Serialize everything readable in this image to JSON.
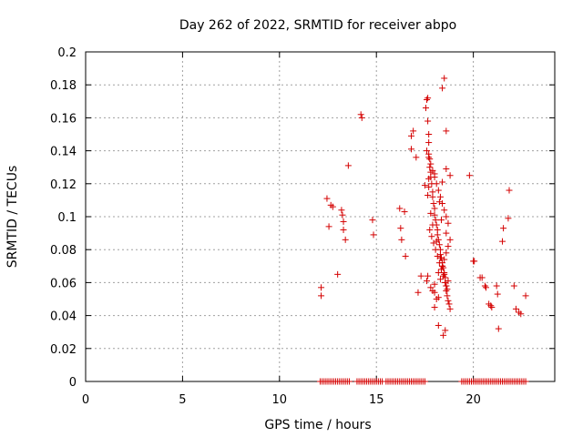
{
  "chart_data": {
    "type": "scatter",
    "title": "Day 262 of 2022, SRMTID for receiver abpo",
    "xlabel": "GPS time / hours",
    "ylabel": "SRMTID / TECUs",
    "xlim": [
      0,
      24.2
    ],
    "ylim": [
      0,
      0.2
    ],
    "xticks": [
      0,
      5,
      10,
      15,
      20
    ],
    "xtick_labels": [
      "0",
      "5",
      "10",
      "15",
      "20"
    ],
    "yticks": [
      0,
      0.02,
      0.04,
      0.06,
      0.08,
      0.1,
      0.12,
      0.14,
      0.16,
      0.18,
      0.2
    ],
    "ytick_labels": [
      "0",
      "0.02",
      "0.04",
      "0.06",
      "0.08",
      "0.1",
      "0.12",
      "0.14",
      "0.16",
      "0.18",
      "0.2"
    ],
    "grid": true,
    "marker": "+",
    "color": "#d40000",
    "series": [
      {
        "name": "abpo",
        "x": [
          12.15,
          12.15,
          12.45,
          12.55,
          12.65,
          12.75,
          13.0,
          13.2,
          13.25,
          13.3,
          13.3,
          13.4,
          13.55,
          14.2,
          14.25,
          14.8,
          14.85,
          16.2,
          16.25,
          16.3,
          16.45,
          16.5,
          16.8,
          16.8,
          16.9,
          17.05,
          17.15,
          17.3,
          17.5,
          17.55,
          17.6,
          17.65,
          17.65,
          17.7,
          17.7,
          17.7,
          17.75,
          17.75,
          17.8,
          17.8,
          17.85,
          17.9,
          17.9,
          17.95,
          18.0,
          18.0,
          18.05,
          18.1,
          18.15,
          18.15,
          18.2,
          18.25,
          18.3,
          18.3,
          18.35,
          18.4,
          18.45,
          18.5,
          18.55,
          18.55,
          18.6,
          18.6,
          18.65,
          18.7,
          18.75,
          18.8,
          17.6,
          17.7,
          17.8,
          17.9,
          18.0,
          18.1,
          18.2,
          18.3,
          18.4,
          18.5,
          18.6,
          18.7,
          17.75,
          17.85,
          17.95,
          18.05,
          18.15,
          18.25,
          18.35,
          18.45,
          18.55,
          18.65,
          17.65,
          18.0,
          18.3,
          18.6,
          18.2,
          18.4,
          18.5,
          18.6,
          18.7,
          18.8,
          17.6,
          17.8,
          18.0,
          18.2,
          18.4,
          18.6,
          17.9,
          18.1,
          18.3,
          18.5,
          18.7,
          17.7,
          18.0,
          18.4,
          18.6,
          18.8,
          18.5,
          18.4,
          18.6,
          18.55,
          18.45,
          18.2,
          18.0,
          17.9,
          17.8,
          18.1,
          17.7,
          17.65,
          18.25,
          18.35,
          19.8,
          20.0,
          20.05,
          20.35,
          20.45,
          20.6,
          20.65,
          20.8,
          20.9,
          20.95,
          21.2,
          21.25,
          21.3,
          21.5,
          21.55,
          21.8,
          21.85,
          22.1,
          22.2,
          22.35,
          22.45,
          22.7
        ],
        "y": [
          0.057,
          0.052,
          0.111,
          0.094,
          0.107,
          0.106,
          0.065,
          0.104,
          0.101,
          0.097,
          0.092,
          0.086,
          0.131,
          0.162,
          0.16,
          0.098,
          0.089,
          0.105,
          0.093,
          0.086,
          0.103,
          0.076,
          0.149,
          0.141,
          0.152,
          0.136,
          0.054,
          0.064,
          0.119,
          0.166,
          0.171,
          0.172,
          0.158,
          0.15,
          0.145,
          0.138,
          0.135,
          0.13,
          0.127,
          0.124,
          0.12,
          0.115,
          0.112,
          0.108,
          0.105,
          0.101,
          0.098,
          0.095,
          0.092,
          0.089,
          0.086,
          0.083,
          0.08,
          0.077,
          0.075,
          0.072,
          0.069,
          0.066,
          0.063,
          0.06,
          0.058,
          0.055,
          0.052,
          0.049,
          0.047,
          0.044,
          0.14,
          0.136,
          0.132,
          0.128,
          0.124,
          0.12,
          0.116,
          0.112,
          0.108,
          0.104,
          0.1,
          0.096,
          0.092,
          0.088,
          0.084,
          0.08,
          0.076,
          0.072,
          0.068,
          0.064,
          0.06,
          0.056,
          0.064,
          0.059,
          0.062,
          0.058,
          0.066,
          0.07,
          0.074,
          0.078,
          0.082,
          0.086,
          0.061,
          0.057,
          0.054,
          0.051,
          0.07,
          0.09,
          0.095,
          0.085,
          0.075,
          0.065,
          0.061,
          0.123,
          0.126,
          0.121,
          0.129,
          0.125,
          0.184,
          0.178,
          0.152,
          0.031,
          0.028,
          0.034,
          0.045,
          0.055,
          0.102,
          0.05,
          0.118,
          0.113,
          0.109,
          0.098,
          0.125,
          0.073,
          0.073,
          0.063,
          0.063,
          0.058,
          0.057,
          0.047,
          0.046,
          0.045,
          0.058,
          0.053,
          0.032,
          0.085,
          0.093,
          0.099,
          0.116,
          0.058,
          0.044,
          0.042,
          0.041,
          0.052
        ]
      },
      {
        "name": "zero",
        "x": [
          12.1,
          12.2,
          12.3,
          12.4,
          12.5,
          12.6,
          12.7,
          12.8,
          12.9,
          13.0,
          13.1,
          13.2,
          13.3,
          13.4,
          13.5,
          13.6,
          14.0,
          14.1,
          14.2,
          14.3,
          14.4,
          14.5,
          14.6,
          14.7,
          14.8,
          14.9,
          15.0,
          15.1,
          15.2,
          15.3,
          15.5,
          15.6,
          15.7,
          15.8,
          15.9,
          16.0,
          16.1,
          16.2,
          16.3,
          16.4,
          16.5,
          16.6,
          16.7,
          16.8,
          16.9,
          17.0,
          17.1,
          17.2,
          17.3,
          17.4,
          17.5,
          19.4,
          19.5,
          19.6,
          19.7,
          19.8,
          19.9,
          20.0,
          20.1,
          20.2,
          20.3,
          20.4,
          20.5,
          20.6,
          20.7,
          20.8,
          20.9,
          21.0,
          21.1,
          21.2,
          21.3,
          21.4,
          21.5,
          21.6,
          21.7,
          21.8,
          21.9,
          22.0,
          22.1,
          22.2,
          22.3,
          22.4,
          22.5,
          22.6,
          22.7
        ],
        "y_value": 0
      }
    ]
  }
}
